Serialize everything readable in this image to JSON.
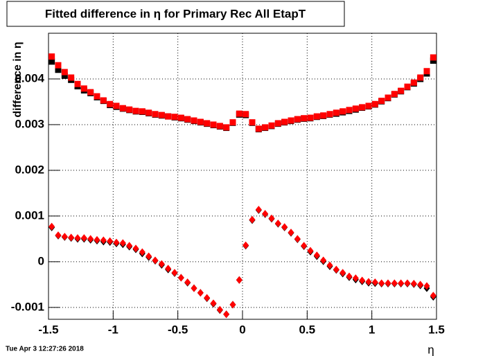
{
  "chart_data": {
    "type": "scatter",
    "title": "Fitted difference in  η for Primary Rec All EtapT",
    "y_label": "difference in  η",
    "x_label": "η",
    "timestamp": "Tue Apr  3 12:27:26 2018",
    "xlim": [
      -1.5,
      1.5
    ],
    "ylim": [
      -0.00126,
      0.005
    ],
    "xticks": [
      -1.5,
      -1,
      -0.5,
      0,
      0.5,
      1,
      1.5
    ],
    "yticks": [
      -0.001,
      0,
      0.001,
      0.002,
      0.003,
      0.004
    ],
    "grid": true,
    "x": [
      -1.475,
      -1.425,
      -1.375,
      -1.325,
      -1.275,
      -1.225,
      -1.175,
      -1.125,
      -1.075,
      -1.025,
      -0.975,
      -0.925,
      -0.875,
      -0.825,
      -0.775,
      -0.725,
      -0.675,
      -0.625,
      -0.575,
      -0.525,
      -0.475,
      -0.425,
      -0.375,
      -0.325,
      -0.275,
      -0.225,
      -0.175,
      -0.125,
      -0.075,
      -0.025,
      0.025,
      0.075,
      0.125,
      0.175,
      0.225,
      0.275,
      0.325,
      0.375,
      0.425,
      0.475,
      0.525,
      0.575,
      0.625,
      0.675,
      0.725,
      0.775,
      0.825,
      0.875,
      0.925,
      0.975,
      1.025,
      1.075,
      1.125,
      1.175,
      1.225,
      1.275,
      1.325,
      1.375,
      1.425,
      1.475
    ],
    "series": [
      {
        "color": "#000000",
        "marker": "square",
        "values": [
          0.00438,
          0.0042,
          0.00407,
          0.00398,
          0.00384,
          0.00375,
          0.00369,
          0.0036,
          0.00352,
          0.00343,
          0.00339,
          0.00335,
          0.00332,
          0.00329,
          0.00328,
          0.00325,
          0.00322,
          0.0032,
          0.00318,
          0.00316,
          0.00314,
          0.00311,
          0.00308,
          0.00305,
          0.00302,
          0.00299,
          0.00296,
          0.00293,
          0.00304,
          0.00322,
          0.00321,
          0.00304,
          0.0029,
          0.00293,
          0.00297,
          0.00302,
          0.00305,
          0.00308,
          0.00311,
          0.00313,
          0.00314,
          0.00317,
          0.00319,
          0.00322,
          0.00324,
          0.00327,
          0.0033,
          0.00333,
          0.00337,
          0.0034,
          0.00344,
          0.00351,
          0.00358,
          0.00366,
          0.00373,
          0.00382,
          0.0039,
          0.004,
          0.00412,
          0.0044
        ]
      },
      {
        "color": "#ff0000",
        "marker": "square",
        "values": [
          0.00449,
          0.0043,
          0.00415,
          0.00403,
          0.00389,
          0.00379,
          0.00371,
          0.00362,
          0.00353,
          0.00345,
          0.00341,
          0.00336,
          0.00333,
          0.0033,
          0.00329,
          0.00326,
          0.00323,
          0.00321,
          0.00318,
          0.00317,
          0.00315,
          0.00312,
          0.00309,
          0.00306,
          0.00303,
          0.003,
          0.00297,
          0.00294,
          0.00305,
          0.00324,
          0.00323,
          0.00305,
          0.00291,
          0.00294,
          0.00298,
          0.00303,
          0.00306,
          0.00309,
          0.00312,
          0.00314,
          0.00315,
          0.00318,
          0.0032,
          0.00323,
          0.00326,
          0.00329,
          0.00332,
          0.00335,
          0.00338,
          0.00341,
          0.00345,
          0.00352,
          0.00359,
          0.00367,
          0.00374,
          0.00383,
          0.00392,
          0.00403,
          0.00417,
          0.00447
        ]
      },
      {
        "color": "#000000",
        "marker": "diamond",
        "values": [
          0.00075,
          0.00057,
          0.00054,
          0.00052,
          0.0005,
          0.0005,
          0.00048,
          0.00046,
          0.00044,
          0.00043,
          0.0004,
          0.00038,
          0.00033,
          0.00027,
          0.00018,
          0.0001,
          2e-05,
          -7e-05,
          -0.00017,
          -0.00025,
          -0.00035,
          -0.00046,
          -0.00058,
          -0.00068,
          -0.0008,
          -0.00092,
          -0.00106,
          -0.00115,
          -0.00094,
          -0.0004,
          0.00035,
          0.00091,
          0.00113,
          0.00104,
          0.00094,
          0.00083,
          0.00075,
          0.00063,
          0.00049,
          0.00034,
          0.00022,
          0.00012,
          1e-05,
          -0.0001,
          -0.00018,
          -0.00026,
          -0.00034,
          -0.00039,
          -0.00043,
          -0.00046,
          -0.00047,
          -0.00048,
          -0.00048,
          -0.00048,
          -0.00048,
          -0.00048,
          -0.00049,
          -0.00052,
          -0.00058,
          -0.00077
        ]
      },
      {
        "color": "#ff0000",
        "marker": "diamond",
        "values": [
          0.00077,
          0.00058,
          0.00055,
          0.00053,
          0.00052,
          0.00052,
          0.0005,
          0.00048,
          0.00047,
          0.00045,
          0.00042,
          0.00041,
          0.00035,
          0.00029,
          0.00021,
          0.00012,
          3e-05,
          -5e-05,
          -0.00015,
          -0.00024,
          -0.00035,
          -0.00045,
          -0.00058,
          -0.00068,
          -0.00079,
          -0.00091,
          -0.00105,
          -0.00115,
          -0.00094,
          -0.0004,
          0.00036,
          0.00092,
          0.00114,
          0.00105,
          0.00095,
          0.00084,
          0.00076,
          0.00064,
          0.0005,
          0.00035,
          0.00024,
          0.00014,
          3e-05,
          -8e-05,
          -0.00017,
          -0.00024,
          -0.00032,
          -0.00036,
          -0.00041,
          -0.00044,
          -0.00045,
          -0.00047,
          -0.00047,
          -0.00047,
          -0.00047,
          -0.00047,
          -0.00048,
          -0.0005,
          -0.00053,
          -0.00074
        ]
      }
    ]
  }
}
